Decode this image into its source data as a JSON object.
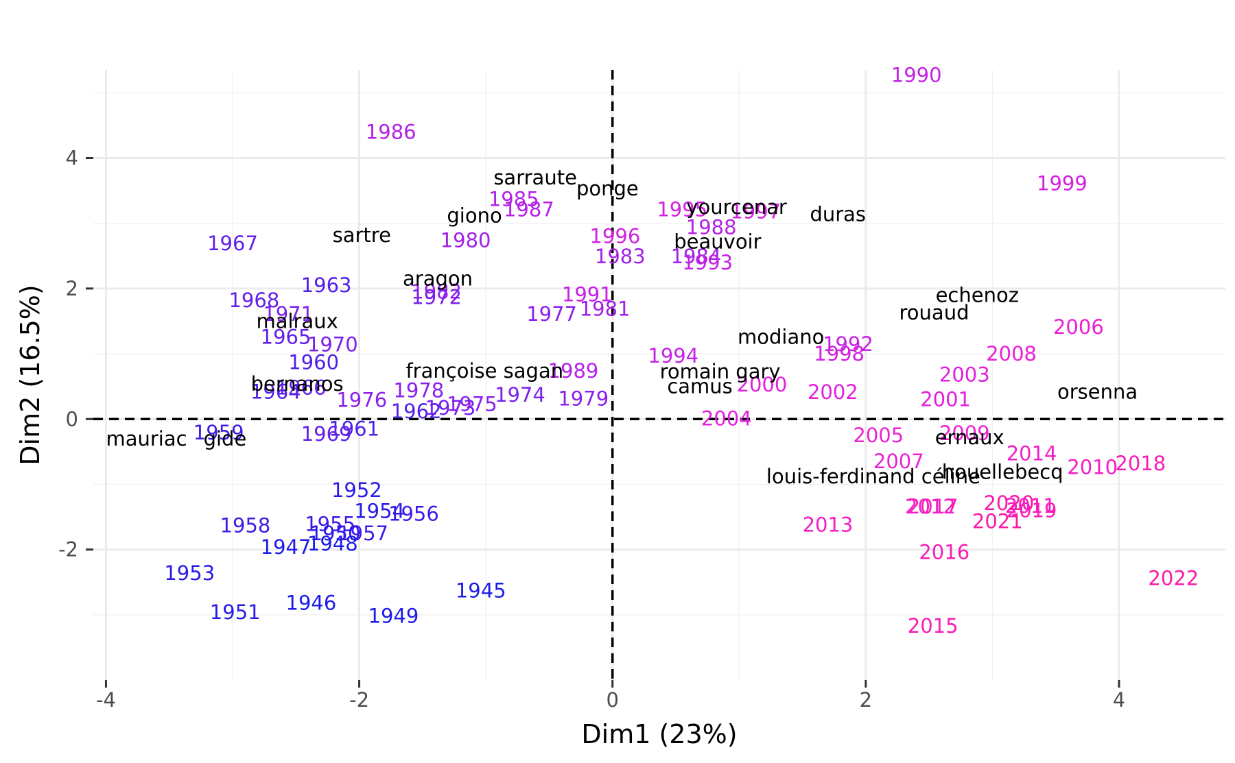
{
  "chart_data": {
    "type": "scatter",
    "xlabel": "Dim1 (23%)",
    "ylabel": "Dim2 (16.5%)",
    "xlim": [
      -4.1,
      4.84
    ],
    "ylim": [
      -4.0,
      5.35
    ],
    "xticks": [
      -4,
      -2,
      0,
      2,
      4
    ],
    "yticks": [
      -2,
      0,
      2,
      4
    ],
    "xminor": [
      -3,
      -1,
      1,
      3
    ],
    "yminor": [
      -3,
      -1,
      1,
      3,
      5
    ],
    "grid": true,
    "hline": 0,
    "vline": 0,
    "series": [
      {
        "labels": [
          "1990",
          "1986",
          "1999",
          "1985",
          "1987",
          "1995",
          "1997",
          "1988",
          "1967",
          "1980",
          "1996",
          "1983",
          "1984",
          "1993",
          "1963",
          "1982",
          "1972",
          "1968",
          "1991",
          "1971",
          "1977",
          "1981",
          "1965",
          "1970",
          "1992",
          "1998",
          "2006",
          "2008",
          "1994",
          "1960",
          "1989",
          "2003",
          "2000",
          "1964",
          "1966",
          "1978",
          "1974",
          "1979",
          "1976",
          "1975",
          "1973",
          "1962",
          "2002",
          "2001",
          "2004",
          "1959",
          "1961",
          "1969",
          "2005",
          "2009",
          "2014",
          "2007",
          "2010",
          "2018",
          "1952",
          "1954",
          "1956",
          "1958",
          "1955",
          "1950",
          "1957",
          "1948",
          "1947",
          "2017",
          "2012",
          "2020",
          "2011",
          "2019",
          "2021",
          "2013",
          "2016",
          "1953",
          "2022",
          "1945",
          "1946",
          "1951",
          "1949",
          "2015"
        ],
        "x": [
          2.4,
          -1.75,
          3.55,
          -0.78,
          -0.66,
          0.55,
          1.13,
          0.78,
          -3.0,
          -1.16,
          0.02,
          0.06,
          0.66,
          0.75,
          -2.26,
          -1.39,
          -1.39,
          -2.83,
          -0.2,
          -2.56,
          -0.48,
          -0.06,
          -2.58,
          -2.21,
          1.86,
          1.79,
          3.68,
          3.15,
          0.48,
          -2.36,
          -0.31,
          2.78,
          1.18,
          -2.66,
          -2.46,
          -1.53,
          -0.73,
          -0.23,
          -1.98,
          -1.11,
          -1.28,
          -1.55,
          1.74,
          2.63,
          0.9,
          -3.11,
          -2.04,
          -2.26,
          2.1,
          2.78,
          3.31,
          2.26,
          3.79,
          4.17,
          -2.02,
          -1.84,
          -1.57,
          -2.9,
          -2.23,
          -2.19,
          -1.97,
          -2.21,
          -2.58,
          2.53,
          2.51,
          3.13,
          3.3,
          3.31,
          3.04,
          1.7,
          2.62,
          -3.34,
          4.43,
          -1.04,
          -2.38,
          -2.98,
          -1.73,
          2.53
        ],
        "y": [
          5.27,
          4.4,
          3.61,
          3.37,
          3.21,
          3.21,
          3.18,
          2.94,
          2.69,
          2.74,
          2.8,
          2.49,
          2.49,
          2.4,
          2.05,
          1.95,
          1.87,
          1.82,
          1.91,
          1.61,
          1.61,
          1.69,
          1.26,
          1.14,
          1.15,
          1.0,
          1.41,
          1.0,
          0.97,
          0.87,
          0.74,
          0.68,
          0.53,
          0.42,
          0.48,
          0.44,
          0.37,
          0.31,
          0.29,
          0.23,
          0.17,
          0.12,
          0.41,
          0.3,
          0.01,
          -0.21,
          -0.15,
          -0.23,
          -0.25,
          -0.22,
          -0.53,
          -0.65,
          -0.74,
          -0.68,
          -1.09,
          -1.41,
          -1.45,
          -1.63,
          -1.61,
          -1.75,
          -1.75,
          -1.91,
          -1.96,
          -1.34,
          -1.34,
          -1.29,
          -1.33,
          -1.4,
          -1.57,
          -1.62,
          -2.04,
          -2.36,
          -2.44,
          -2.63,
          -2.82,
          -2.96,
          -3.02,
          -3.17
        ],
        "colors": [
          "#c620e6",
          "#b420e8",
          "#d420e2",
          "#b420e8",
          "#b420e8",
          "#d420e2",
          "#d420e2",
          "#b420e8",
          "#6220ea",
          "#a020ea",
          "#d420e2",
          "#a020ea",
          "#a020ea",
          "#c620e6",
          "#5020e8",
          "#a020ea",
          "#7a20ec",
          "#6220ea",
          "#c620e6",
          "#7a20ec",
          "#8c20ec",
          "#a020ea",
          "#6220ea",
          "#7a20ec",
          "#c620e6",
          "#d420e2",
          "#ec20d4",
          "#ec20d4",
          "#c620e6",
          "#5020e8",
          "#b420e8",
          "#e220dc",
          "#e220dc",
          "#5020e8",
          "#6220ea",
          "#8c20ec",
          "#7a20ec",
          "#8c20ec",
          "#8c20ec",
          "#8c20ec",
          "#7a20ec",
          "#5020e8",
          "#e220dc",
          "#e220dc",
          "#e220dc",
          "#3c1ae8",
          "#5020e8",
          "#6220ea",
          "#ec20d4",
          "#ec20d4",
          "#f41cc6",
          "#ec20d4",
          "#f41cc6",
          "#f81cb8",
          "#2a1ae8",
          "#2a1ae8",
          "#3c1ae8",
          "#3c1ae8",
          "#3c1ae8",
          "#2a1ae8",
          "#3c1ae8",
          "#1c1ce8",
          "#1c1ce8",
          "#f81cb8",
          "#f41cc6",
          "#fc1aa8",
          "#f41cc6",
          "#f81cb8",
          "#fc1aa8",
          "#f41cc6",
          "#f81cb8",
          "#2a1ae8",
          "#fc1aa8",
          "#1c1ce8",
          "#1c1ce8",
          "#2a1ae8",
          "#1c1ce8",
          "#f81cb8"
        ]
      },
      {
        "labels": [
          "sarraute",
          "ponge",
          "yourcenar",
          "duras",
          "giono",
          "sartre",
          "beauvoir",
          "aragon",
          "echenoz",
          "rouaud",
          "malraux",
          "modiano",
          "françoise sagan",
          "romain gary",
          "camus",
          "bernanos",
          "orsenna",
          "mauriac",
          "gide",
          "ernaux",
          "houellebecq",
          "louis-ferdinand céline"
        ],
        "x": [
          -0.61,
          -0.04,
          0.98,
          1.78,
          -1.09,
          -1.98,
          0.83,
          -1.38,
          2.88,
          2.54,
          -2.49,
          1.33,
          -1.01,
          0.85,
          0.69,
          -2.49,
          3.83,
          -3.68,
          -3.06,
          2.82,
          3.08,
          2.06
        ],
        "y": [
          3.7,
          3.53,
          3.25,
          3.14,
          3.12,
          2.82,
          2.72,
          2.15,
          1.9,
          1.63,
          1.5,
          1.26,
          0.74,
          0.73,
          0.5,
          0.54,
          0.42,
          -0.3,
          -0.3,
          -0.28,
          -0.81,
          -0.88
        ],
        "color": "#000000"
      }
    ]
  }
}
